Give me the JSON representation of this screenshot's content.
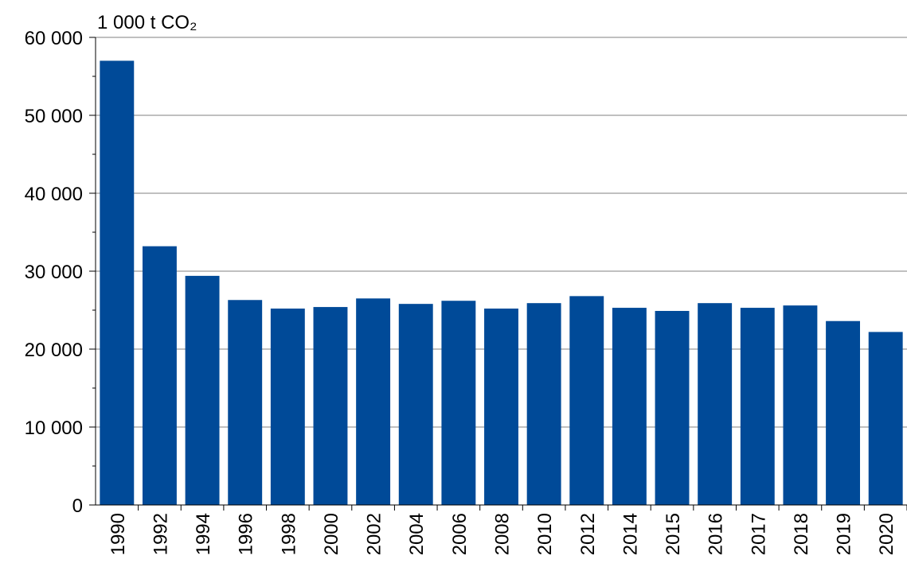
{
  "chart_data": {
    "type": "bar",
    "unit_label": "1 000 t CO₂",
    "categories": [
      "1990",
      "1992",
      "1994",
      "1996",
      "1998",
      "2000",
      "2002",
      "2004",
      "2006",
      "2008",
      "2010",
      "2012",
      "2014",
      "2015",
      "2016",
      "2017",
      "2018",
      "2019",
      "2020"
    ],
    "values": [
      57000,
      33200,
      29400,
      26300,
      25200,
      25400,
      26500,
      25800,
      26200,
      25200,
      25900,
      26800,
      25300,
      24900,
      25900,
      25300,
      25600,
      23600,
      22200
    ],
    "color": "#004a98",
    "ylim": [
      0,
      60000
    ],
    "yticks": [
      0,
      {
        "value": 10000,
        "label": "10 000"
      },
      {
        "value": 20000,
        "label": "20 000"
      },
      {
        "value": 30000,
        "label": "30 000"
      },
      {
        "value": 40000,
        "label": "40 000"
      },
      {
        "value": 50000,
        "label": "50 000"
      },
      {
        "value": 60000,
        "label": "60 000"
      }
    ],
    "minor_yticks": [
      5000,
      15000,
      25000,
      35000,
      45000,
      55000
    ],
    "grid": true
  }
}
